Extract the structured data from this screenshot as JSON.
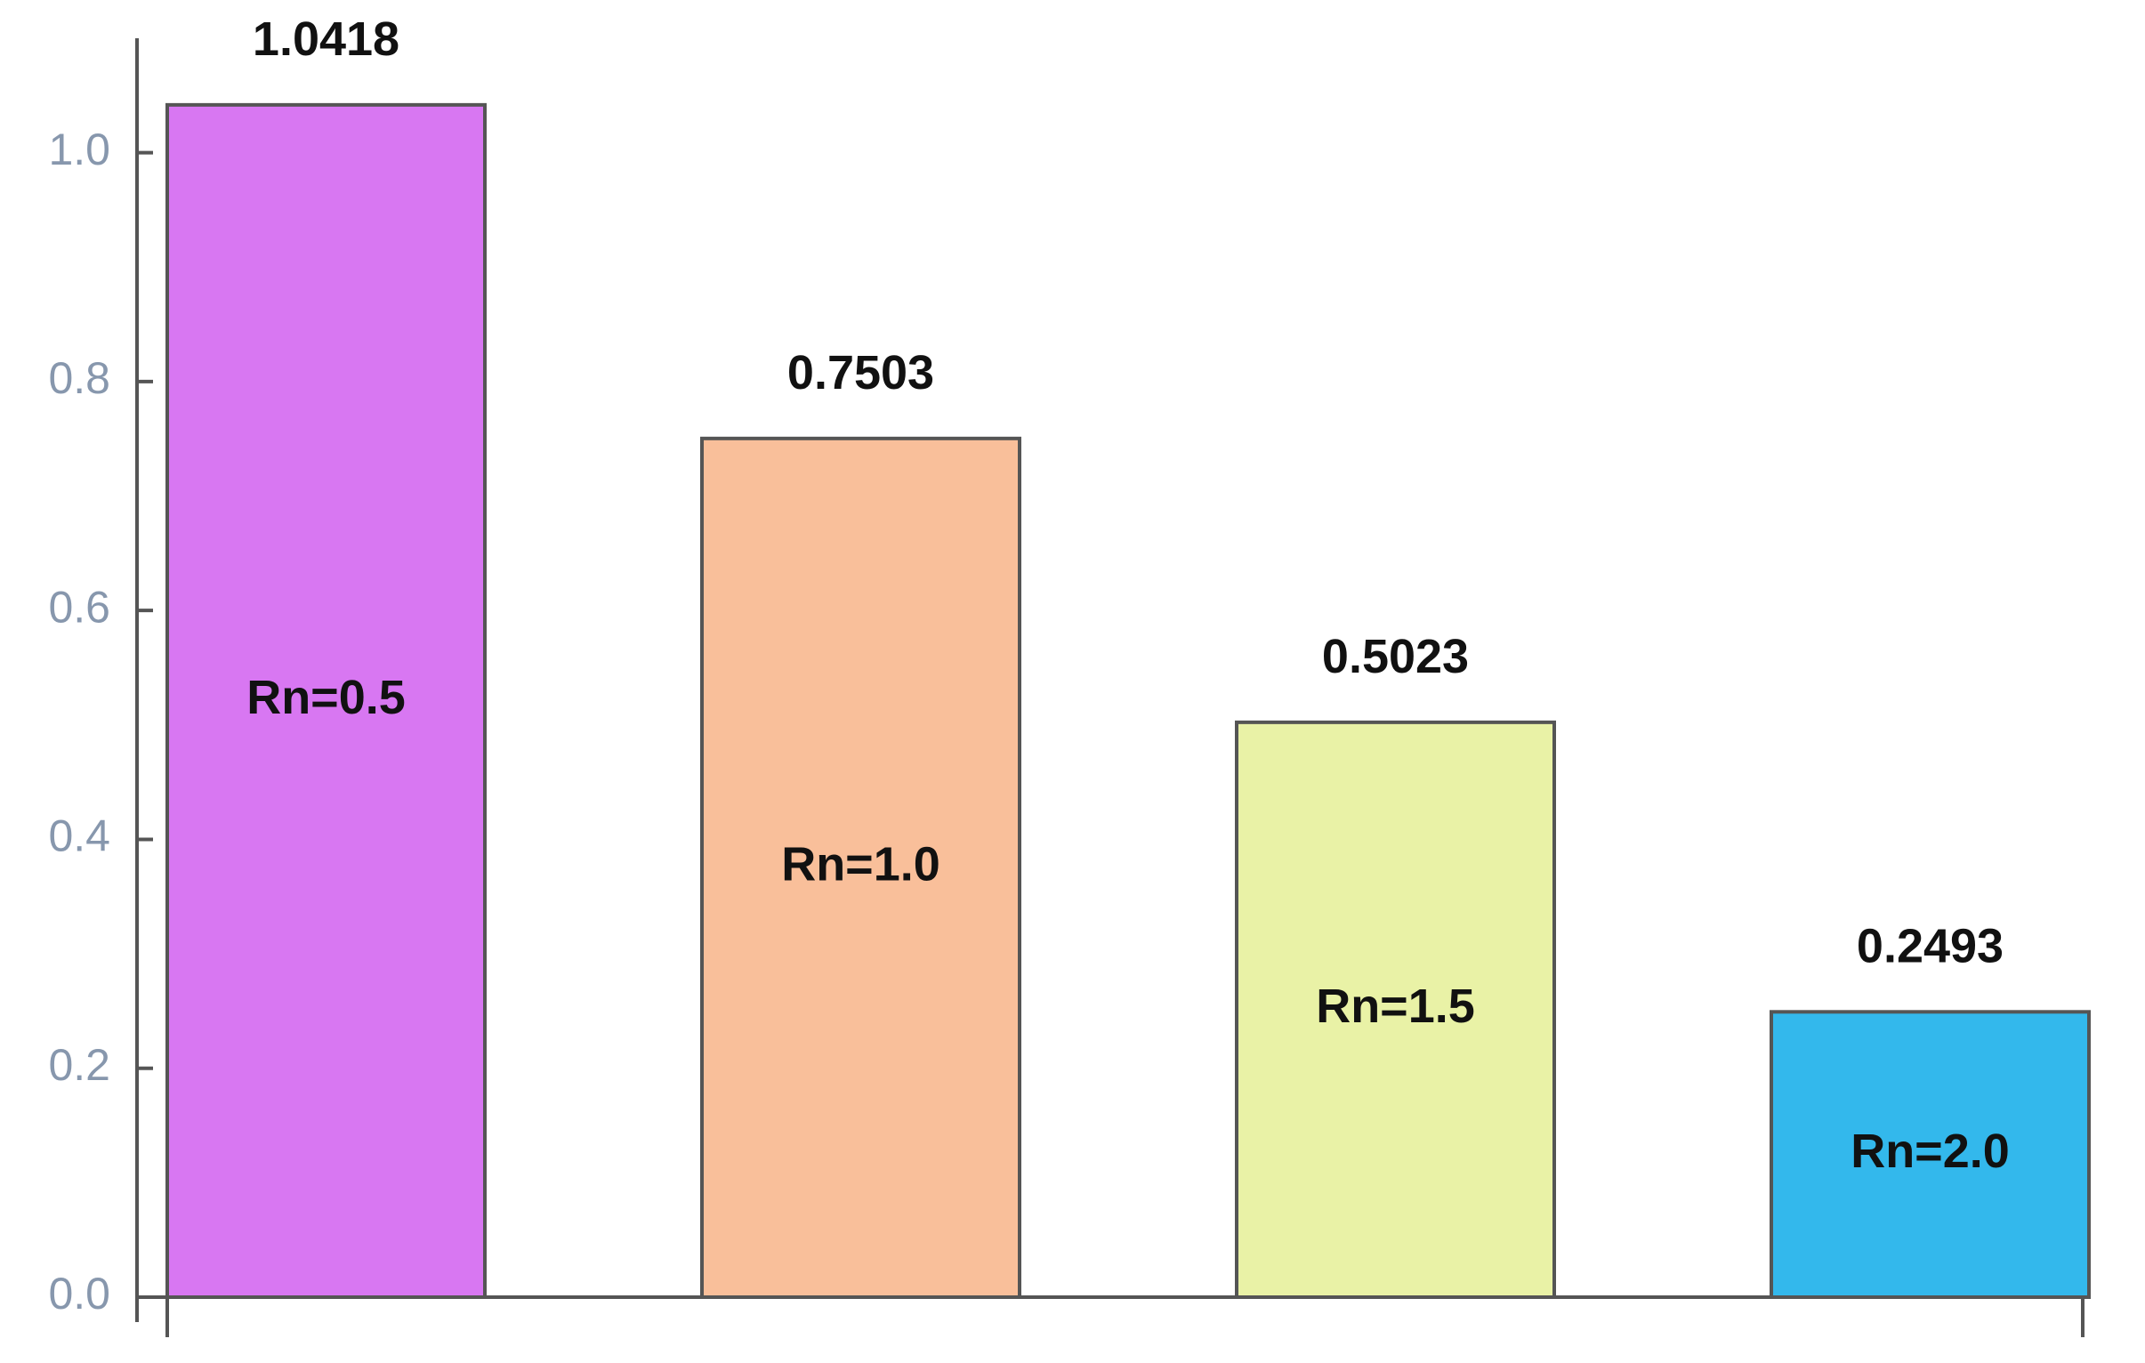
{
  "chart_data": {
    "type": "bar",
    "categories": [
      "Rn=0.5",
      "Rn=1.0",
      "Rn=1.5",
      "Rn=2.0"
    ],
    "values": [
      1.0418,
      0.7503,
      0.5023,
      0.2493
    ],
    "colors": [
      "#d877f2",
      "#f9bf9a",
      "#e9f2a6",
      "#33b8ec"
    ],
    "ylim": [
      0,
      1.1
    ],
    "yticks": [
      {
        "value": 0,
        "label": "0.0"
      },
      0.2,
      0.4,
      0.6,
      0.8,
      {
        "value": 1,
        "label": "1.0"
      }
    ]
  }
}
